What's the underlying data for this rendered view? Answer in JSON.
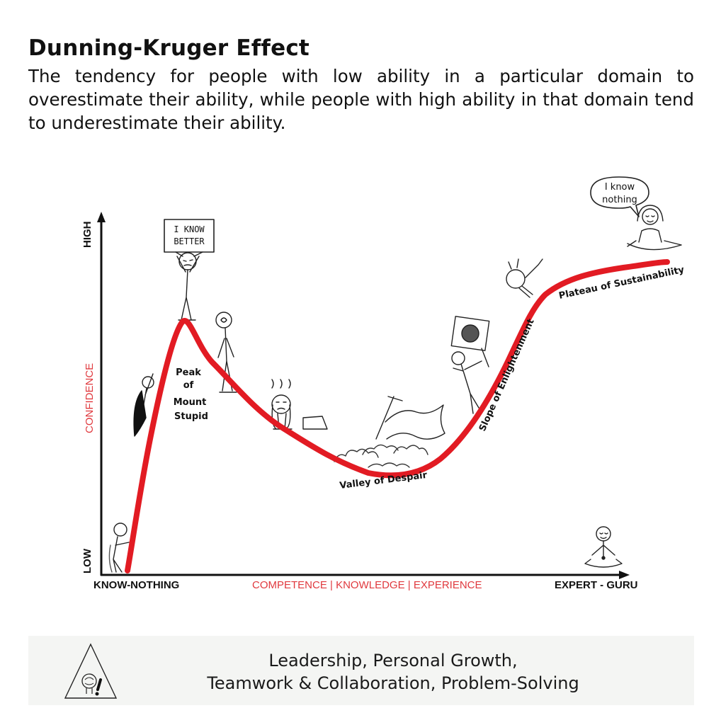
{
  "header": {
    "title": "Dunning-Kruger Effect",
    "subtitle": "The tendency for people with low ability in a particular domain to overestimate their ability, while people with high ability in that domain tend to underestimate their ability."
  },
  "axes": {
    "y_high": "HIGH",
    "y_low": "LOW",
    "y_label": "CONFIDENCE",
    "x_start": "KNOW-NOTHING",
    "x_label": "COMPETENCE | KNOWLEDGE | EXPERIENCE",
    "x_end": "EXPERT - GURU"
  },
  "stages": {
    "peak": [
      "Peak",
      "of",
      "Mount",
      "Stupid"
    ],
    "valley": "Valley of Despair",
    "slope": "Slope of Enlightenment",
    "plateau": "Plateau of Sustainability"
  },
  "sign": {
    "line1": "I KNOW",
    "line2": "BETTER"
  },
  "speech": {
    "line1": "I know",
    "line2": "nothing"
  },
  "colors": {
    "curve": "#e21b23",
    "axis_label": "#e0393e",
    "ink": "#111111",
    "footer_bg": "#f4f5f3"
  },
  "footer": {
    "line1": "Leadership, Personal Growth,",
    "line2": "Teamwork & Collaboration, Problem-Solving"
  }
}
